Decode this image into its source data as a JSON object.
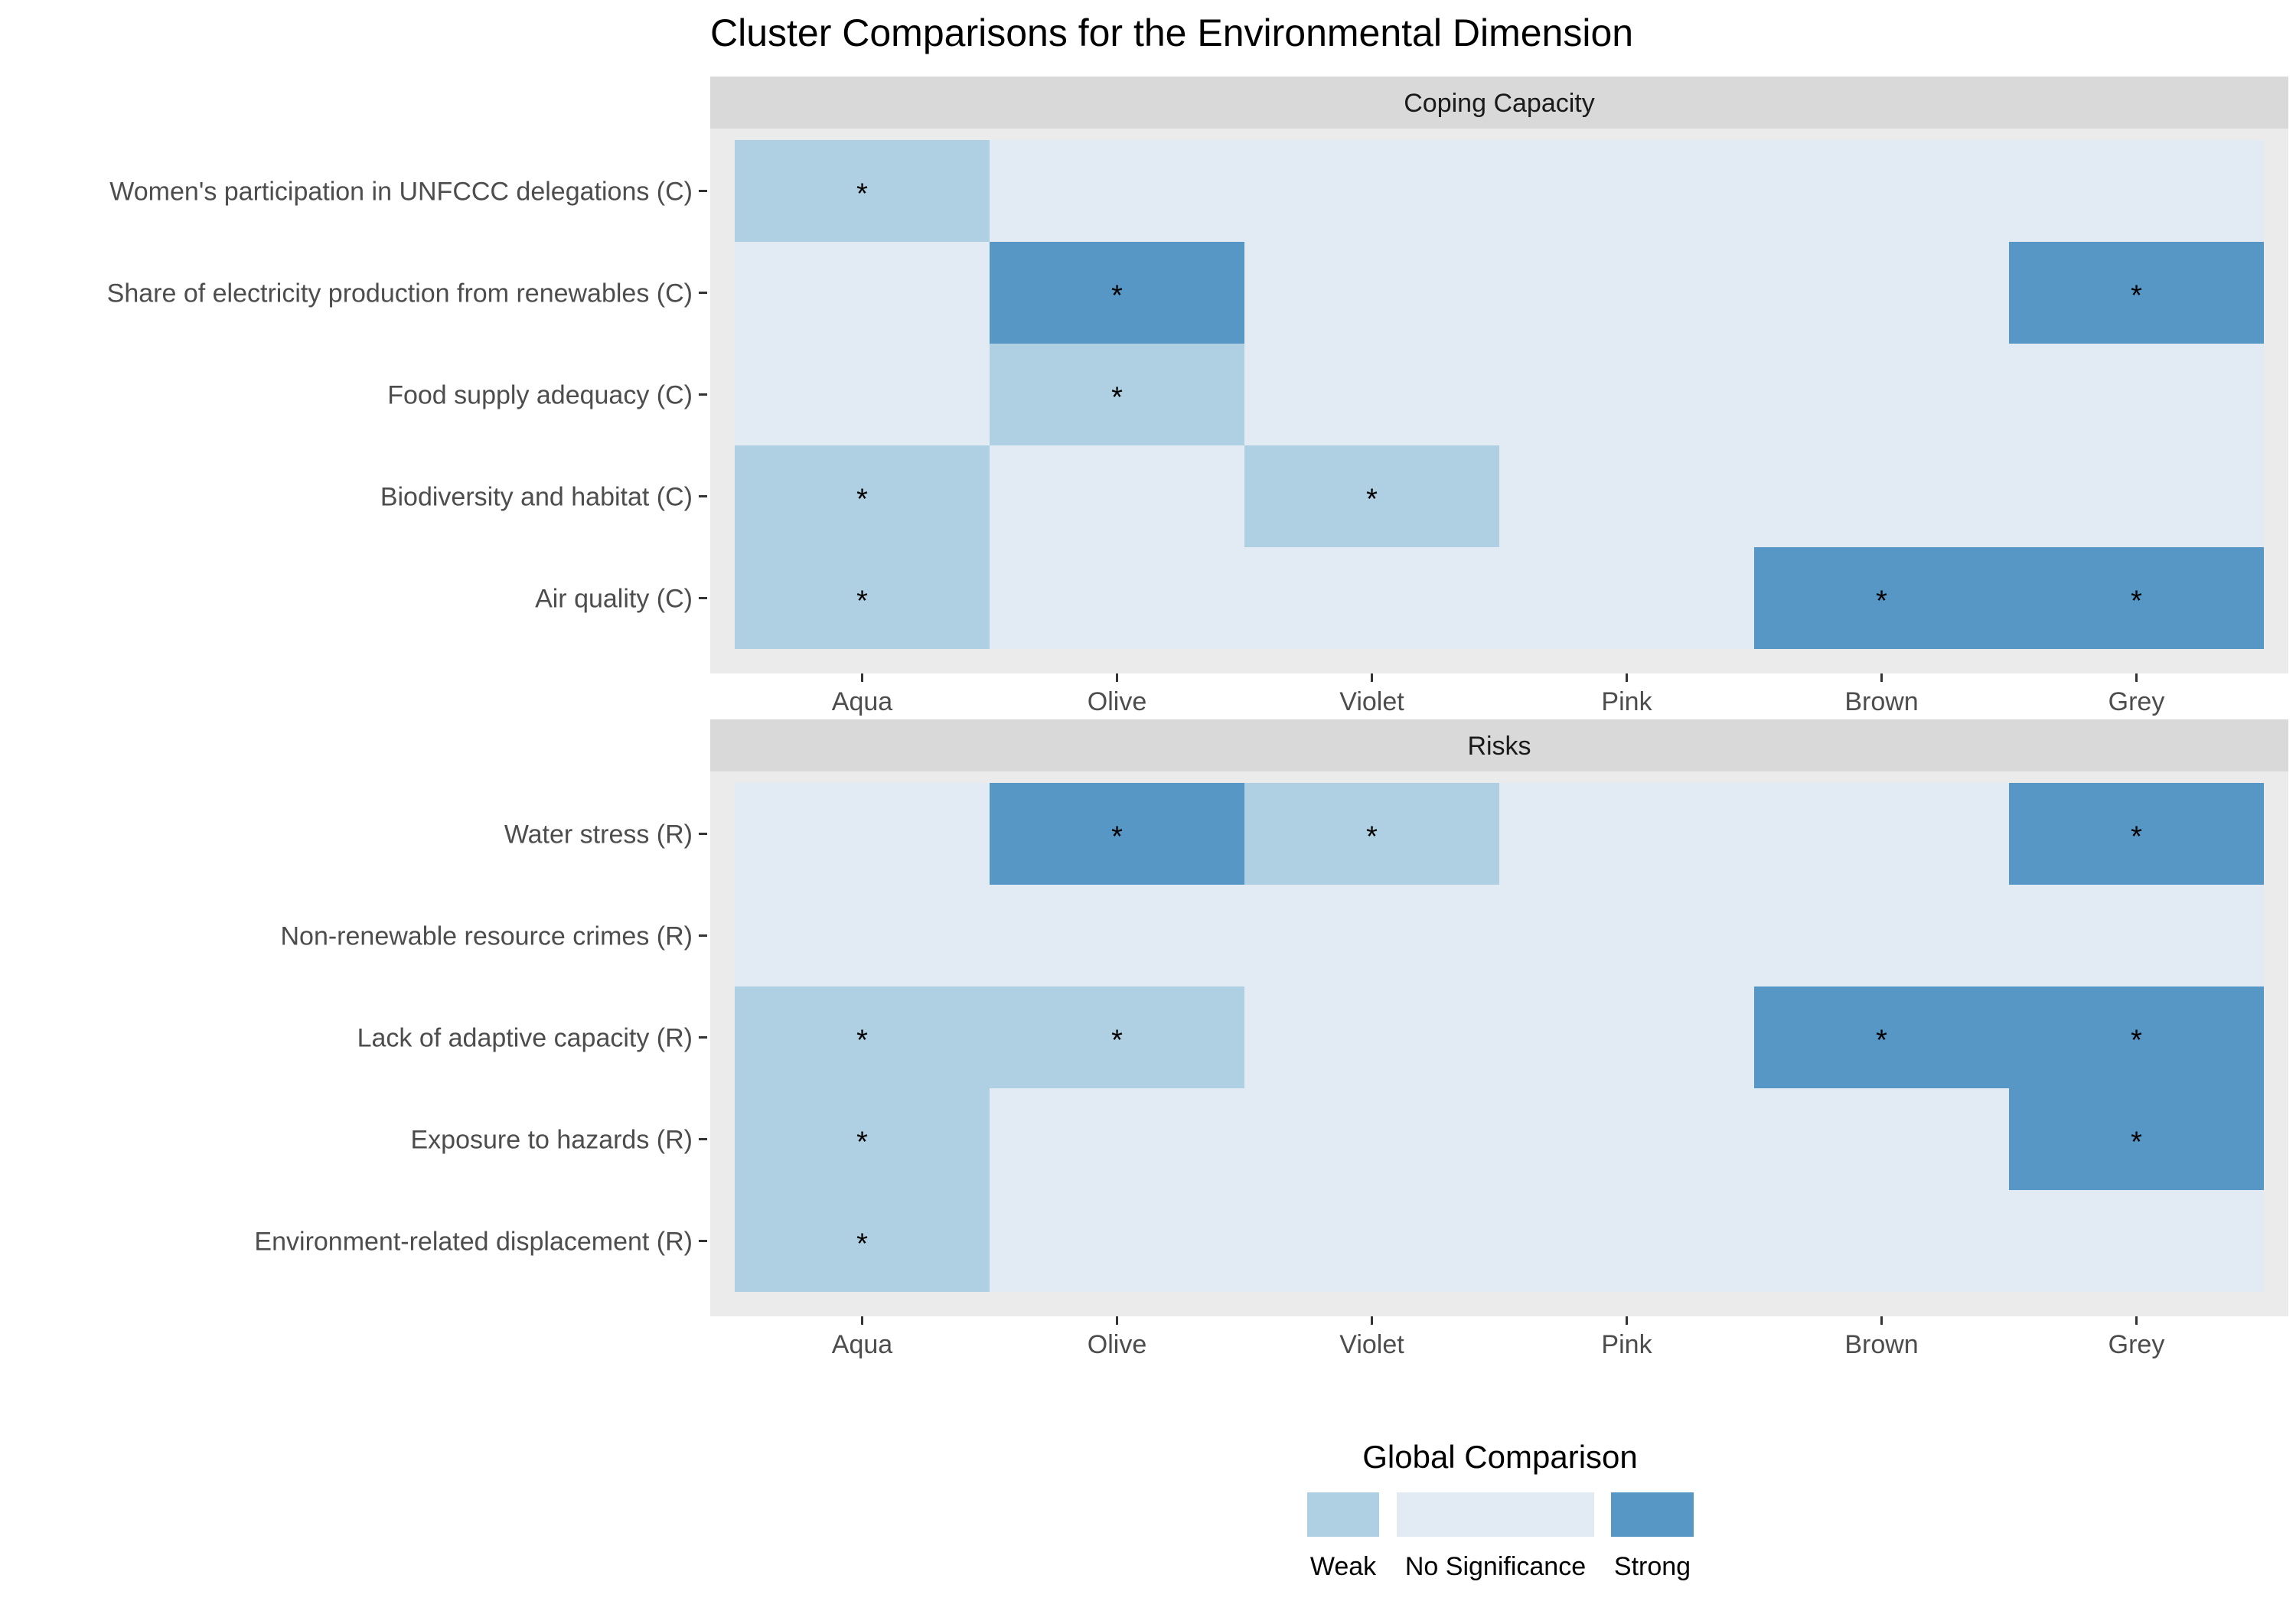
{
  "chart_data": {
    "type": "heatmap",
    "title": "Cluster Comparisons for the Environmental Dimension",
    "xlabel": "",
    "ylabel": "",
    "clusters": [
      "Aqua",
      "Olive",
      "Violet",
      "Pink",
      "Brown",
      "Grey"
    ],
    "panels": [
      {
        "name": "Coping Capacity",
        "rows": [
          {
            "label": "Women's participation in UNFCCC delegations (C)",
            "values": [
              "Weak",
              "No Significance",
              "No Significance",
              "No Significance",
              "No Significance",
              "No Significance"
            ]
          },
          {
            "label": "Share of electricity production from renewables (C)",
            "values": [
              "No Significance",
              "Strong",
              "No Significance",
              "No Significance",
              "No Significance",
              "Strong"
            ]
          },
          {
            "label": "Food supply adequacy (C)",
            "values": [
              "No Significance",
              "Weak",
              "No Significance",
              "No Significance",
              "No Significance",
              "No Significance"
            ]
          },
          {
            "label": "Biodiversity and habitat (C)",
            "values": [
              "Weak",
              "No Significance",
              "Weak",
              "No Significance",
              "No Significance",
              "No Significance"
            ]
          },
          {
            "label": "Air quality (C)",
            "values": [
              "Weak",
              "No Significance",
              "No Significance",
              "No Significance",
              "Strong",
              "Strong"
            ]
          }
        ]
      },
      {
        "name": "Risks",
        "rows": [
          {
            "label": "Water stress (R)",
            "values": [
              "No Significance",
              "Strong",
              "Weak",
              "No Significance",
              "No Significance",
              "Strong"
            ]
          },
          {
            "label": "Non-renewable resource crimes (R)",
            "values": [
              "No Significance",
              "No Significance",
              "No Significance",
              "No Significance",
              "No Significance",
              "No Significance"
            ]
          },
          {
            "label": "Lack of adaptive capacity (R)",
            "values": [
              "Weak",
              "Weak",
              "No Significance",
              "No Significance",
              "Strong",
              "Strong"
            ]
          },
          {
            "label": "Exposure to hazards (R)",
            "values": [
              "Weak",
              "No Significance",
              "No Significance",
              "No Significance",
              "No Significance",
              "Strong"
            ]
          },
          {
            "label": "Environment-related displacement (R)",
            "values": [
              "Weak",
              "No Significance",
              "No Significance",
              "No Significance",
              "No Significance",
              "No Significance"
            ]
          }
        ]
      }
    ],
    "significance_marker": "*",
    "legend": {
      "title": "Global Comparison",
      "position": "bottom",
      "items": [
        {
          "label": "Weak",
          "color": "#aed0e2"
        },
        {
          "label": "No Significance",
          "color": "#e2ebf4"
        },
        {
          "label": "Strong",
          "color": "#5797c6"
        }
      ]
    },
    "colors": {
      "panel_background": "#ebebeb",
      "strip_background": "#d9d9d9"
    }
  }
}
